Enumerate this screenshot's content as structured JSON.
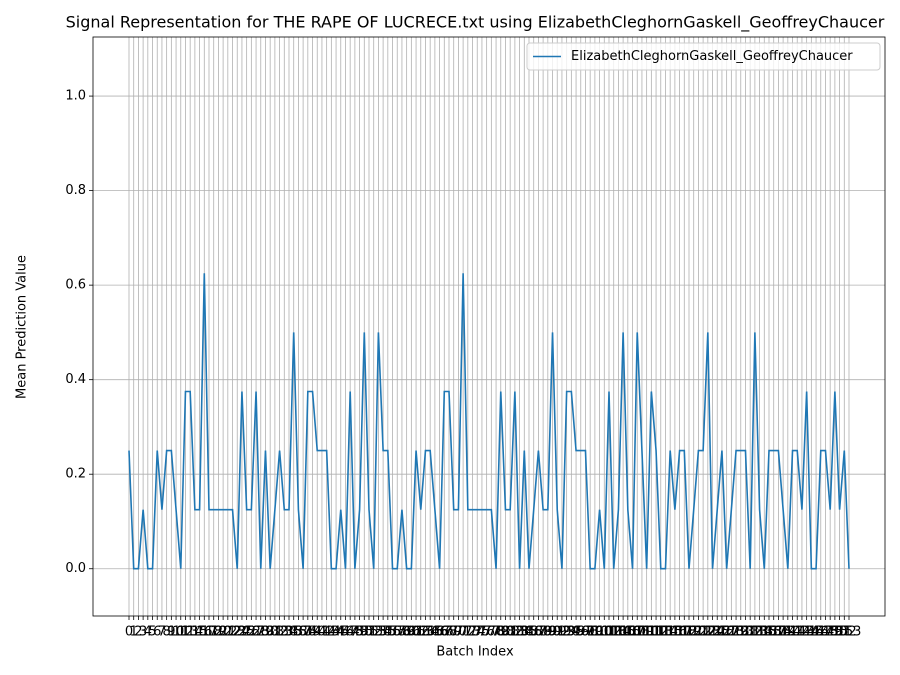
{
  "chart_data": {
    "type": "line",
    "title": "Signal Representation for THE RAPE OF LUCRECE.txt using ElizabethCleghornGaskell_GeoffreyChaucer",
    "xlabel": "Batch Index",
    "ylabel": "Mean Prediction Value",
    "x": [
      0,
      1,
      2,
      3,
      4,
      5,
      6,
      7,
      8,
      9,
      10,
      11,
      12,
      13,
      14,
      15,
      16,
      17,
      18,
      19,
      20,
      21,
      22,
      23,
      24,
      25,
      26,
      27,
      28,
      29,
      30,
      31,
      32,
      33,
      34,
      35,
      36,
      37,
      38,
      39,
      40,
      41,
      42,
      43,
      44,
      45,
      46,
      47,
      48,
      49,
      50,
      51,
      52,
      53,
      54,
      55,
      56,
      57,
      58,
      59,
      60,
      61,
      62,
      63,
      64,
      65,
      66,
      67,
      68,
      69,
      70,
      71,
      72,
      73,
      74,
      75,
      76,
      77,
      78,
      79,
      80,
      81,
      82,
      83,
      84,
      85,
      86,
      87,
      88,
      89,
      90,
      91,
      92,
      93,
      94,
      95,
      96,
      97,
      98,
      99,
      100,
      101,
      102,
      103,
      104,
      105,
      106,
      107,
      108,
      109,
      110,
      111,
      112,
      113,
      114,
      115,
      116,
      117,
      118,
      119,
      120,
      121,
      122,
      123,
      124,
      125,
      126,
      127,
      128,
      129,
      130,
      131,
      132,
      133,
      134,
      135,
      136,
      137,
      138,
      139,
      140,
      141,
      142,
      143,
      144,
      145,
      146,
      147,
      148,
      149,
      150,
      151,
      152,
      153
    ],
    "series": [
      {
        "name": "ElizabethCleghornGaskell_GeoffreyChaucer",
        "color": "#1f77b4",
        "values": [
          0.25,
          0,
          0,
          0.125,
          0,
          0,
          0.25,
          0.125,
          0.25,
          0.25,
          0.125,
          0,
          0.375,
          0.375,
          0.125,
          0.125,
          0.625,
          0.125,
          0.125,
          0.125,
          0.125,
          0.125,
          0.125,
          0,
          0.375,
          0.125,
          0.125,
          0.375,
          0,
          0.25,
          0,
          0.125,
          0.25,
          0.125,
          0.125,
          0.5,
          0.125,
          0,
          0.375,
          0.375,
          0.25,
          0.25,
          0.25,
          0,
          0,
          0.125,
          0,
          0.375,
          0,
          0.125,
          0.5,
          0.125,
          0,
          0.5,
          0.25,
          0.25,
          0,
          0,
          0.125,
          0,
          0,
          0.25,
          0.125,
          0.25,
          0.25,
          0.125,
          0,
          0.375,
          0.375,
          0.125,
          0.125,
          0.625,
          0.125,
          0.125,
          0.125,
          0.125,
          0.125,
          0.125,
          0,
          0.375,
          0.125,
          0.125,
          0.375,
          0,
          0.25,
          0,
          0.125,
          0.25,
          0.125,
          0.125,
          0.5,
          0.125,
          0,
          0.375,
          0.375,
          0.25,
          0.25,
          0.25,
          0,
          0,
          0.125,
          0,
          0.375,
          0,
          0.125,
          0.5,
          0.125,
          0,
          0.5,
          0.25,
          0,
          0.375,
          0.25,
          0,
          0,
          0.25,
          0.125,
          0.25,
          0.25,
          0,
          0.125,
          0.25,
          0.25,
          0.5,
          0,
          0.125,
          0.25,
          0,
          0.125,
          0.25,
          0.25,
          0.25,
          0,
          0.5,
          0.125,
          0,
          0.25,
          0.25,
          0.25,
          0.125,
          0,
          0.25,
          0.25,
          0.125,
          0.375,
          0,
          0,
          0.25,
          0.25,
          0.125,
          0.375,
          0.125,
          0.25,
          0
        ]
      }
    ],
    "xlim": [
      -7.65,
      160.65
    ],
    "ylim": [
      -0.1,
      1.125
    ],
    "yticks": [
      {
        "value": 0,
        "label": "0.0"
      },
      0.2,
      0.4,
      0.6,
      0.8,
      {
        "value": 1,
        "label": "1.0"
      }
    ],
    "grid": true,
    "legend": "upper right"
  }
}
